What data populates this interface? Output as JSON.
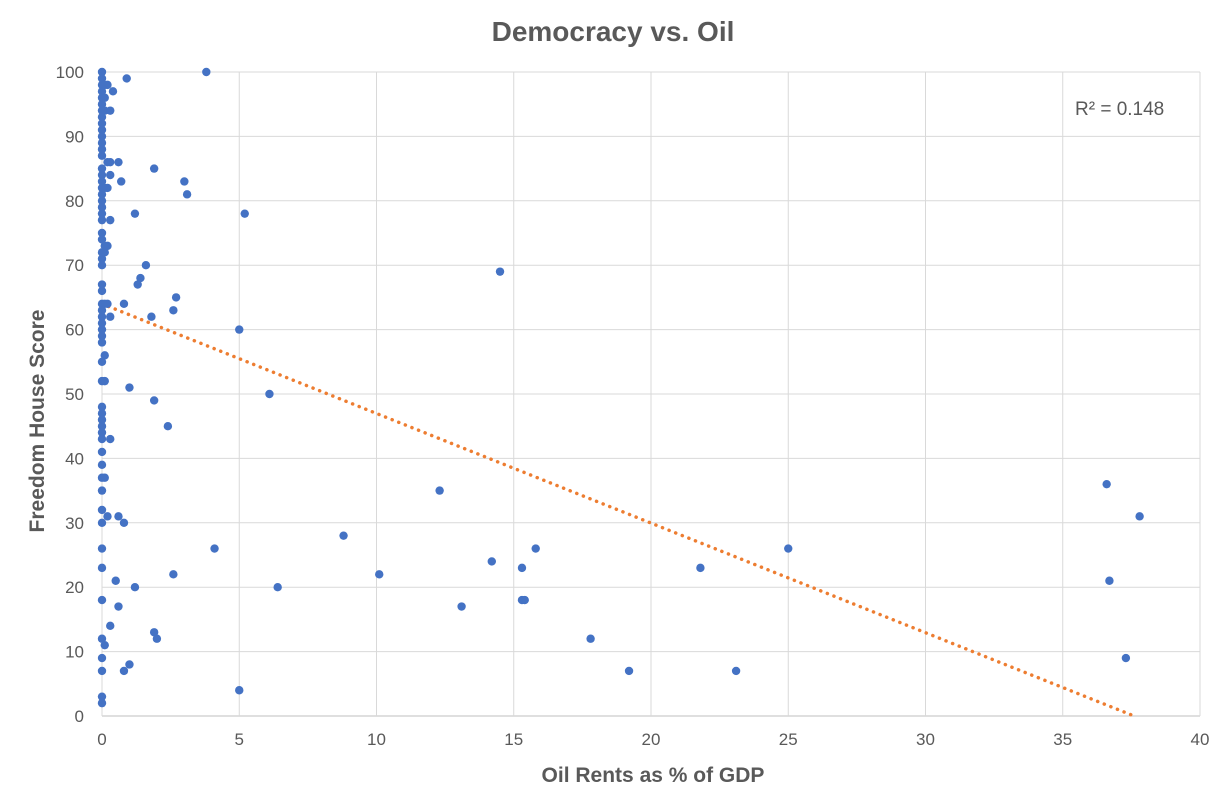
{
  "chart_data": {
    "type": "scatter",
    "title": "Democracy vs. Oil",
    "xlabel": "Oil Rents as % of GDP",
    "ylabel": "Freedom House Score",
    "xlim": [
      0,
      40
    ],
    "ylim": [
      0,
      100
    ],
    "xticks": [
      0,
      5,
      10,
      15,
      20,
      25,
      30,
      35,
      40
    ],
    "yticks": [
      0,
      10,
      20,
      30,
      40,
      50,
      60,
      70,
      80,
      90,
      100
    ],
    "grid": true,
    "legend": "none",
    "annotation": "R² = 0.148",
    "series": [
      {
        "color": "#4472c4",
        "points": [
          [
            0,
            100
          ],
          [
            0,
            99
          ],
          [
            0,
            98
          ],
          [
            0,
            97
          ],
          [
            0,
            96
          ],
          [
            0,
            95
          ],
          [
            0,
            94
          ],
          [
            0,
            93
          ],
          [
            0,
            92
          ],
          [
            0,
            91
          ],
          [
            0,
            90
          ],
          [
            0,
            89
          ],
          [
            0,
            88
          ],
          [
            0,
            87
          ],
          [
            0,
            85
          ],
          [
            0,
            84
          ],
          [
            0,
            83
          ],
          [
            0,
            82
          ],
          [
            0,
            81
          ],
          [
            0,
            80
          ],
          [
            0,
            79
          ],
          [
            0,
            78
          ],
          [
            0,
            77
          ],
          [
            0,
            75
          ],
          [
            0,
            74
          ],
          [
            0,
            72
          ],
          [
            0,
            71
          ],
          [
            0,
            70
          ],
          [
            0,
            67
          ],
          [
            0,
            66
          ],
          [
            0,
            64
          ],
          [
            0,
            63
          ],
          [
            0,
            62
          ],
          [
            0,
            61
          ],
          [
            0,
            60
          ],
          [
            0,
            59
          ],
          [
            0,
            58
          ],
          [
            0,
            55
          ],
          [
            0,
            52
          ],
          [
            0,
            48
          ],
          [
            0,
            47
          ],
          [
            0,
            46
          ],
          [
            0,
            45
          ],
          [
            0,
            44
          ],
          [
            0,
            43
          ],
          [
            0,
            41
          ],
          [
            0,
            39
          ],
          [
            0,
            37
          ],
          [
            0,
            35
          ],
          [
            0,
            32
          ],
          [
            0,
            30
          ],
          [
            0,
            26
          ],
          [
            0,
            23
          ],
          [
            0,
            18
          ],
          [
            0,
            12
          ],
          [
            0,
            9
          ],
          [
            0,
            7
          ],
          [
            0,
            3
          ],
          [
            0,
            2
          ],
          [
            0.1,
            98
          ],
          [
            0.1,
            96
          ],
          [
            0.1,
            94
          ],
          [
            0.1,
            82
          ],
          [
            0.1,
            73
          ],
          [
            0.1,
            72
          ],
          [
            0.1,
            64
          ],
          [
            0.1,
            56
          ],
          [
            0.1,
            52
          ],
          [
            0.1,
            37
          ],
          [
            0.1,
            11
          ],
          [
            0.2,
            98
          ],
          [
            0.2,
            86
          ],
          [
            0.2,
            82
          ],
          [
            0.2,
            73
          ],
          [
            0.2,
            64
          ],
          [
            0.2,
            31
          ],
          [
            0.3,
            86
          ],
          [
            0.3,
            62
          ],
          [
            0.3,
            94
          ],
          [
            0.3,
            84
          ],
          [
            0.3,
            77
          ],
          [
            0.3,
            43
          ],
          [
            0.3,
            14
          ],
          [
            0.4,
            97
          ],
          [
            0.5,
            21
          ],
          [
            0.6,
            86
          ],
          [
            0.6,
            31
          ],
          [
            0.6,
            17
          ],
          [
            0.7,
            83
          ],
          [
            0.8,
            64
          ],
          [
            0.8,
            30
          ],
          [
            0.8,
            7
          ],
          [
            0.9,
            99
          ],
          [
            1.0,
            51
          ],
          [
            1.0,
            8
          ],
          [
            1.2,
            78
          ],
          [
            1.2,
            20
          ],
          [
            1.3,
            67
          ],
          [
            1.4,
            68
          ],
          [
            1.6,
            70
          ],
          [
            1.8,
            62
          ],
          [
            1.9,
            85
          ],
          [
            1.9,
            49
          ],
          [
            1.9,
            13
          ],
          [
            2.0,
            12
          ],
          [
            2.4,
            45
          ],
          [
            2.6,
            63
          ],
          [
            2.6,
            22
          ],
          [
            2.7,
            65
          ],
          [
            3.0,
            83
          ],
          [
            3.1,
            81
          ],
          [
            3.8,
            100
          ],
          [
            4.1,
            26
          ],
          [
            5.0,
            60
          ],
          [
            5.0,
            4
          ],
          [
            5.2,
            78
          ],
          [
            6.1,
            50
          ],
          [
            6.4,
            20
          ],
          [
            8.8,
            28
          ],
          [
            10.1,
            22
          ],
          [
            12.3,
            35
          ],
          [
            13.1,
            17
          ],
          [
            14.2,
            24
          ],
          [
            14.5,
            69
          ],
          [
            15.3,
            18
          ],
          [
            15.4,
            18
          ],
          [
            15.3,
            23
          ],
          [
            15.8,
            26
          ],
          [
            17.8,
            12
          ],
          [
            19.2,
            7
          ],
          [
            21.8,
            23
          ],
          [
            23.1,
            7
          ],
          [
            25.0,
            26
          ],
          [
            36.6,
            36
          ],
          [
            36.7,
            21
          ],
          [
            37.3,
            9
          ],
          [
            37.8,
            31
          ]
        ]
      }
    ],
    "trendline": {
      "type": "linear",
      "color": "#ed7d31",
      "style": "dotted",
      "points": [
        [
          0,
          64
        ],
        [
          37.6,
          0
        ]
      ]
    }
  }
}
